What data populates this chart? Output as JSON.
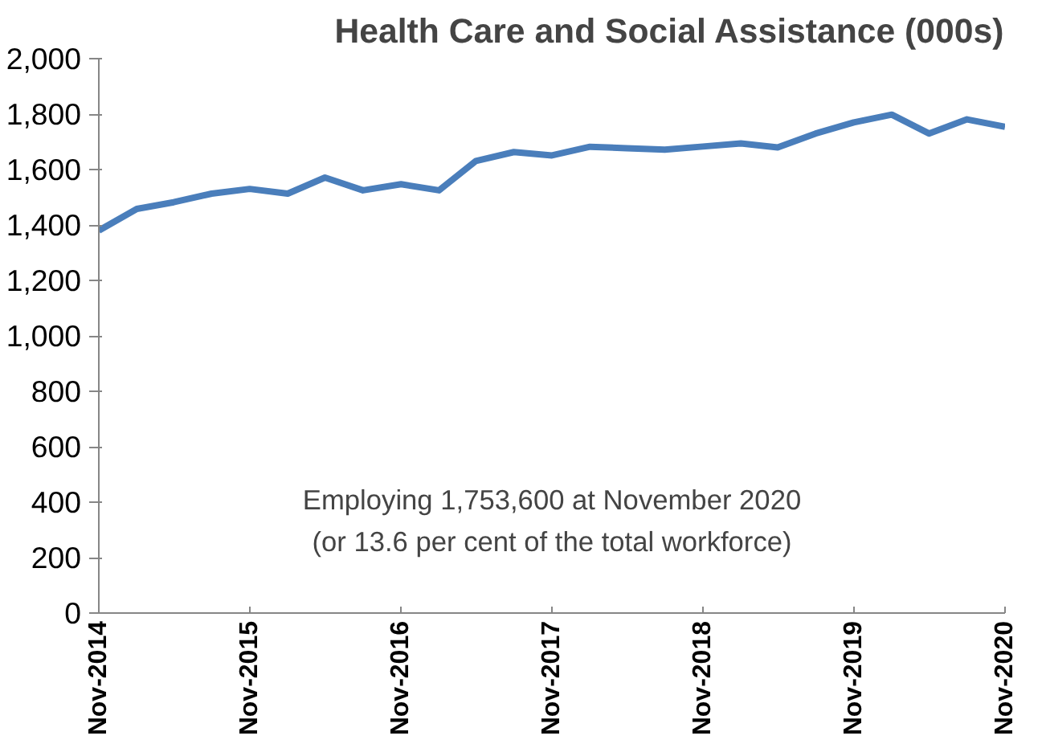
{
  "chart_data": {
    "type": "line",
    "title": "Health Care and Social Assistance (000s)",
    "x": [
      "2014-11",
      "2015-02",
      "2015-05",
      "2015-08",
      "2015-11",
      "2016-02",
      "2016-05",
      "2016-08",
      "2016-11",
      "2017-02",
      "2017-05",
      "2017-08",
      "2017-11",
      "2018-02",
      "2018-05",
      "2018-08",
      "2018-11",
      "2019-02",
      "2019-05",
      "2019-08",
      "2019-11",
      "2020-02",
      "2020-05",
      "2020-08",
      "2020-11"
    ],
    "series": [
      {
        "color": "#4a7ebb",
        "values": [
          1380,
          1458,
          1482,
          1513,
          1530,
          1513,
          1571,
          1525,
          1547,
          1525,
          1631,
          1663,
          1651,
          1682,
          1677,
          1672,
          1683,
          1694,
          1680,
          1730,
          1770,
          1798,
          1730,
          1781,
          1754
        ]
      }
    ],
    "xlim": [
      "2014-11",
      "2020-11"
    ],
    "xticks": [
      {
        "value": "2014-11",
        "label": "Nov-2014"
      },
      {
        "value": "2015-11",
        "label": "Nov-2015"
      },
      {
        "value": "2016-11",
        "label": "Nov-2016"
      },
      {
        "value": "2017-11",
        "label": "Nov-2017"
      },
      {
        "value": "2018-11",
        "label": "Nov-2018"
      },
      {
        "value": "2019-11",
        "label": "Nov-2019"
      },
      {
        "value": "2020-11",
        "label": "Nov-2020"
      }
    ],
    "ylim": [
      0,
      2000
    ],
    "yticks": [
      {
        "value": 0,
        "label": "0"
      },
      {
        "value": 200,
        "label": "200"
      },
      {
        "value": 400,
        "label": "400"
      },
      {
        "value": 600,
        "label": "600"
      },
      {
        "value": 800,
        "label": "800"
      },
      {
        "value": 1000,
        "label": "1,000"
      },
      {
        "value": 1200,
        "label": "1,200"
      },
      {
        "value": 1400,
        "label": "1,400"
      },
      {
        "value": 1600,
        "label": "1,600"
      },
      {
        "value": 1800,
        "label": "1,800"
      },
      {
        "value": 2000,
        "label": "2,000"
      }
    ],
    "annotations": [
      "Employing 1,753,600 at November 2020\n(or 13.6 per cent of the total workforce)"
    ],
    "grid": false,
    "marker": "none",
    "line_style": "solid"
  }
}
